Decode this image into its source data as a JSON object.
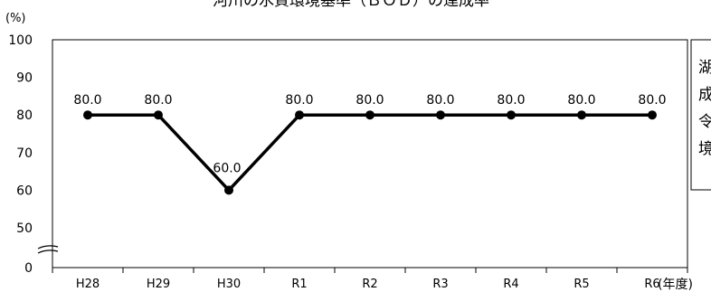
{
  "chart_data": {
    "type": "line",
    "title": "河川の水質環境基準（ＢＯＤ）の達成率",
    "ylabel": "(%)",
    "xlabel": "(年度)",
    "categories": [
      "H28",
      "H29",
      "H30",
      "R1",
      "R2",
      "R3",
      "R4",
      "R5",
      "R6"
    ],
    "series": [
      {
        "values": [
          80.0,
          80.0,
          60.0,
          80.0,
          80.0,
          80.0,
          80.0,
          80.0,
          80.0
        ]
      }
    ],
    "data_labels": [
      "80.0",
      "80.0",
      "60.0",
      "80.0",
      "80.0",
      "80.0",
      "80.0",
      "80.0",
      "80.0"
    ],
    "y_ticks": [
      0,
      50,
      60,
      70,
      80,
      90,
      100
    ],
    "ylim": [
      0,
      100
    ],
    "axis_break": true,
    "grid": false,
    "side_note": [
      "湖",
      "成",
      "令",
      "境"
    ]
  }
}
